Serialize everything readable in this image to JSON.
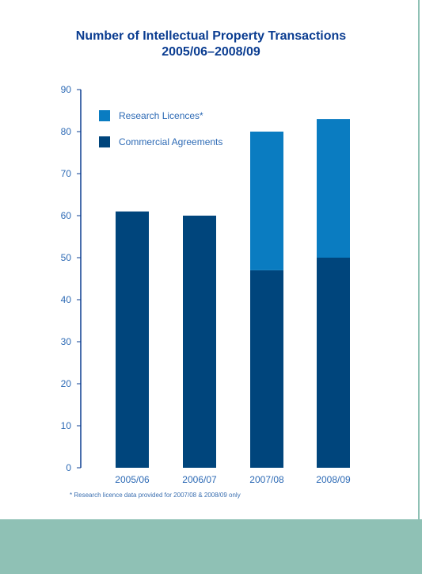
{
  "chart_data": {
    "type": "bar",
    "stacked": true,
    "title": "Number of Intellectual Property Transactions",
    "subtitle": "2005/06–2008/09",
    "categories": [
      "2005/06",
      "2006/07",
      "2007/08",
      "2008/09"
    ],
    "series": [
      {
        "name": "Commercial Agreements",
        "values": [
          61,
          60,
          47,
          50
        ],
        "color": "#00457c"
      },
      {
        "name": "Research Licences*",
        "values": [
          0,
          0,
          33,
          33
        ],
        "color": "#0a7cc1"
      }
    ],
    "ylim": [
      0,
      90
    ],
    "yticks": [
      0,
      10,
      20,
      30,
      40,
      50,
      60,
      70,
      80,
      90
    ],
    "legend_position": "top-left",
    "grid": false
  },
  "footnote": "* Research licence data provided for 2007/08 & 2008/09 only",
  "colors": {
    "title": "#0b3d91",
    "axis_text": "#2d6ab5",
    "band": "#8fc1b5"
  }
}
